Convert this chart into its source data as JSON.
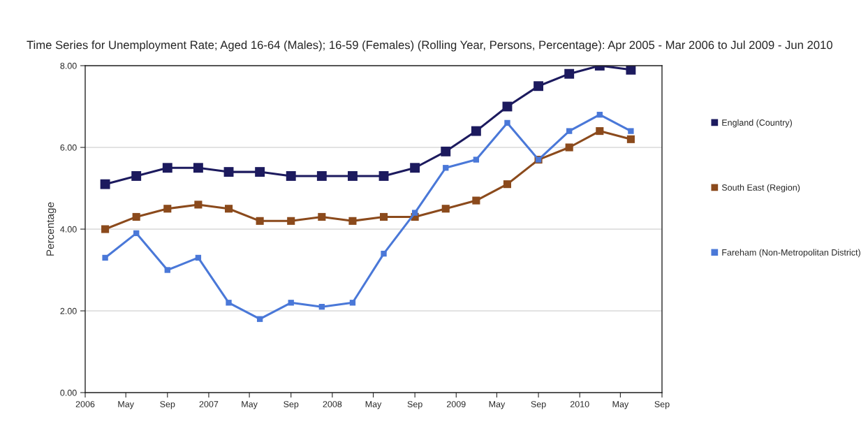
{
  "chart_data": {
    "type": "line",
    "title": "Time Series for Unemployment Rate; Aged 16-64 (Males); 16-59 (Females) (Rolling Year, Persons, Percentage): Apr 2005 - Mar 2006 to Jul 2009 - Jun 2010",
    "ylabel": "Percentage",
    "x": [
      "2006-03",
      "2006-06",
      "2006-09",
      "2006-12",
      "2007-03",
      "2007-06",
      "2007-09",
      "2007-12",
      "2008-03",
      "2008-06",
      "2008-09",
      "2008-12",
      "2009-03",
      "2009-06",
      "2009-09",
      "2009-12",
      "2010-03",
      "2010-06"
    ],
    "series": [
      {
        "name": "England (Country)",
        "color": "#1c1a5e",
        "values": [
          5.1,
          5.3,
          5.5,
          5.5,
          5.4,
          5.4,
          5.3,
          5.3,
          5.3,
          5.3,
          5.5,
          5.9,
          6.4,
          7.0,
          7.5,
          7.8,
          8.0,
          7.9
        ]
      },
      {
        "name": "South East (Region)",
        "color": "#8b4a1c",
        "values": [
          4.0,
          4.3,
          4.5,
          4.6,
          4.5,
          4.2,
          4.2,
          4.3,
          4.2,
          4.3,
          4.3,
          4.5,
          4.7,
          5.1,
          5.7,
          6.0,
          6.4,
          6.2
        ]
      },
      {
        "name": "Fareham (Non-Metropolitan District)",
        "color": "#4a78d8",
        "values": [
          3.3,
          3.9,
          3.0,
          3.3,
          2.2,
          1.8,
          2.2,
          2.1,
          2.2,
          3.4,
          4.4,
          5.5,
          5.7,
          6.6,
          5.7,
          6.4,
          6.8,
          6.4
        ]
      }
    ],
    "xlim": [
      "2006-01",
      "2010-09"
    ],
    "xticks": [
      {
        "value": "2006-01",
        "label": "2006"
      },
      {
        "value": "2006-05",
        "label": "May"
      },
      {
        "value": "2006-09",
        "label": "Sep"
      },
      {
        "value": "2007-01",
        "label": "2007"
      },
      {
        "value": "2007-05",
        "label": "May"
      },
      {
        "value": "2007-09",
        "label": "Sep"
      },
      {
        "value": "2008-01",
        "label": "2008"
      },
      {
        "value": "2008-05",
        "label": "May"
      },
      {
        "value": "2008-09",
        "label": "Sep"
      },
      {
        "value": "2009-01",
        "label": "2009"
      },
      {
        "value": "2009-05",
        "label": "May"
      },
      {
        "value": "2009-09",
        "label": "Sep"
      },
      {
        "value": "2010-01",
        "label": "2010"
      },
      {
        "value": "2010-05",
        "label": "May"
      },
      {
        "value": "2010-09",
        "label": "Sep"
      }
    ],
    "ylim": [
      0,
      8
    ],
    "yticks": [
      {
        "value": 0,
        "label": "0.00"
      },
      {
        "value": 2,
        "label": "2.00"
      },
      {
        "value": 4,
        "label": "4.00"
      },
      {
        "value": 6,
        "label": "6.00"
      },
      {
        "value": 8,
        "label": "8.00"
      }
    ],
    "grid": "y",
    "legend": "right",
    "marker": "square",
    "line_style": "solid"
  }
}
